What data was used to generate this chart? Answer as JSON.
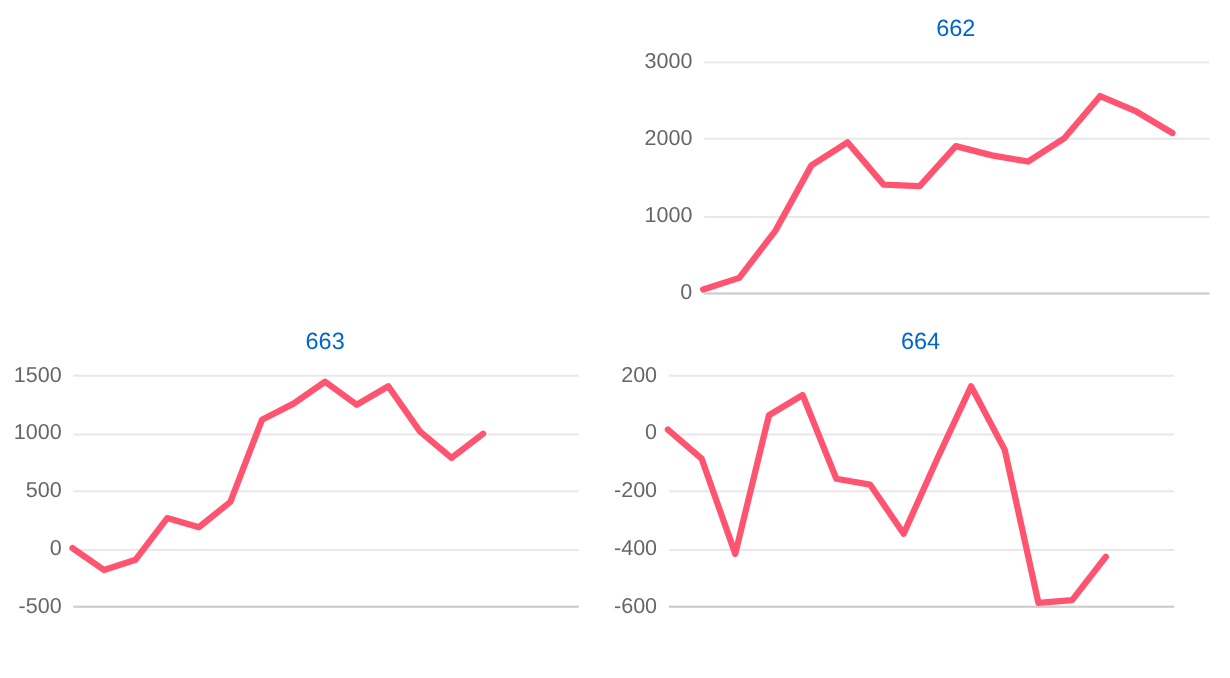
{
  "chart_data": [
    {
      "type": "line",
      "title": "662",
      "categories": [
        null,
        null,
        null,
        null,
        null,
        null,
        null,
        null,
        null,
        null,
        null,
        null,
        null,
        null,
        null
      ],
      "ylim": [
        0,
        3000
      ],
      "yticks": [
        0,
        1000,
        2000,
        3000
      ],
      "tick_labels": "y",
      "grid": "y",
      "marker": "none",
      "line_style": "solid",
      "series": [
        {
          "color": "#ff5470",
          "values": [
            40,
            190,
            800,
            1650,
            1950,
            1400,
            1380,
            1900,
            1780,
            1700,
            2000,
            2550,
            2350,
            2070,
            null
          ]
        }
      ]
    },
    {
      "type": "line",
      "title": "663",
      "categories": [
        null,
        null,
        null,
        null,
        null,
        null,
        null,
        null,
        null,
        null,
        null,
        null,
        null,
        null,
        null,
        null,
        null
      ],
      "ylim": [
        -500,
        1500
      ],
      "yticks": [
        -500,
        0,
        500,
        1000,
        1500
      ],
      "tick_labels": "y",
      "grid": "y",
      "marker": "none",
      "line_style": "solid",
      "series": [
        {
          "color": "#ff5470",
          "values": [
            0,
            -190,
            -100,
            260,
            180,
            400,
            1110,
            1250,
            1440,
            1240,
            1400,
            1010,
            780,
            990,
            null,
            null,
            null
          ]
        }
      ]
    },
    {
      "type": "line",
      "title": "664",
      "categories": [
        null,
        null,
        null,
        null,
        null,
        null,
        null,
        null,
        null,
        null,
        null,
        null,
        null,
        null,
        null,
        null
      ],
      "ylim": [
        -600,
        200
      ],
      "yticks": [
        -600,
        -400,
        -200,
        0,
        200
      ],
      "tick_labels": "y",
      "grid": "y",
      "marker": "none",
      "line_style": "solid",
      "series": [
        {
          "color": "#ff5470",
          "values": [
            10,
            -90,
            -420,
            60,
            130,
            -160,
            -180,
            -350,
            -90,
            160,
            -60,
            -590,
            -580,
            -430,
            null,
            null
          ]
        }
      ]
    }
  ]
}
